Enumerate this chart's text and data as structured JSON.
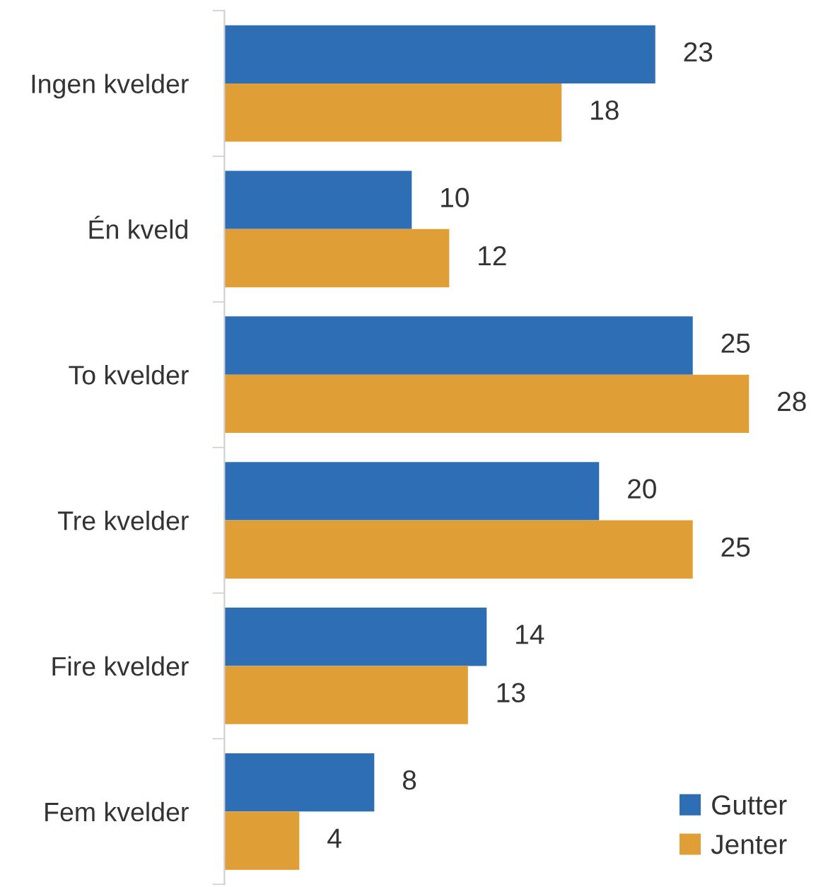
{
  "chart_data": {
    "type": "bar",
    "orientation": "horizontal",
    "categories": [
      "Ingen kvelder",
      "Én kveld",
      "To kvelder",
      "Tre kvelder",
      "Fire kvelder",
      "Fem kvelder"
    ],
    "series": [
      {
        "name": "Gutter",
        "color": "#2e6eb5",
        "values": [
          23,
          10,
          25,
          20,
          14,
          8
        ]
      },
      {
        "name": "Jenter",
        "color": "#e09f36",
        "values": [
          18,
          12,
          28,
          25,
          13,
          4
        ]
      }
    ],
    "data_labels": true,
    "legend": "bottom right",
    "grid": false
  }
}
